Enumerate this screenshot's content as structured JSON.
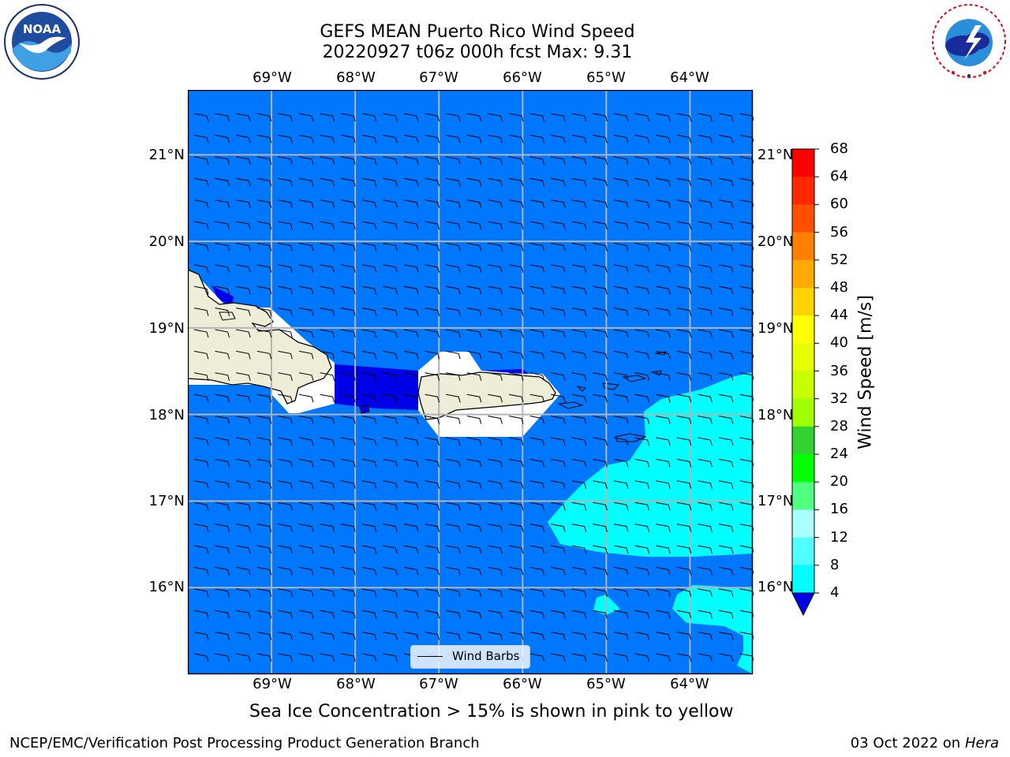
{
  "header": {
    "title_line1": "GEFS MEAN Puerto Rico Wind Speed",
    "title_line2": "20220927 t06z 000h fcst   Max: 9.31"
  },
  "logos": {
    "left": "NOAA",
    "left_ring": "NATIONAL OCEANIC AND ATMOSPHERIC ADMINISTRATION · U.S. DEPARTMENT OF COMMERCE",
    "right": "NATIONAL WEATHER SERVICE"
  },
  "map": {
    "lon_ticks": [
      "69°W",
      "68°W",
      "67°W",
      "66°W",
      "65°W",
      "64°W"
    ],
    "lat_ticks": [
      "21°N",
      "20°N",
      "19°N",
      "18°N",
      "17°N",
      "16°N"
    ],
    "lon_range": [
      -70.0,
      -63.25
    ],
    "lat_range": [
      15.0,
      21.75
    ],
    "legend_label": "Wind Barbs",
    "colors": {
      "land": "#eeeed8",
      "fill_4_8": "#0077ff",
      "fill_below_4": "#0000e6",
      "fill_8_12": "#00ffff",
      "masked": "#ffffff",
      "grid": "#b4b4b4"
    }
  },
  "colorbar": {
    "title": "Wind Speed [m/s]",
    "levels": [
      "68",
      "64",
      "60",
      "56",
      "52",
      "48",
      "44",
      "40",
      "36",
      "32",
      "28",
      "24",
      "20",
      "16",
      "12",
      "8",
      "4"
    ],
    "colors": [
      "#ff0000",
      "#ff2800",
      "#ff5000",
      "#ff8000",
      "#ffaa00",
      "#ffd200",
      "#ffff00",
      "#e6ff00",
      "#c8ff00",
      "#a0ff00",
      "#32d232",
      "#00ff00",
      "#50ff80",
      "#aaffff",
      "#50ffff",
      "#00ffff",
      "#0077ff"
    ],
    "extend_min_color": "#0000e6"
  },
  "footer": {
    "note": "Sea Ice Concentration > 15% is shown in pink to yellow",
    "left": "NCEP/EMC/Verification Post Processing Product Generation Branch",
    "date": "03 Oct 2022 on ",
    "machine": "Hera"
  }
}
